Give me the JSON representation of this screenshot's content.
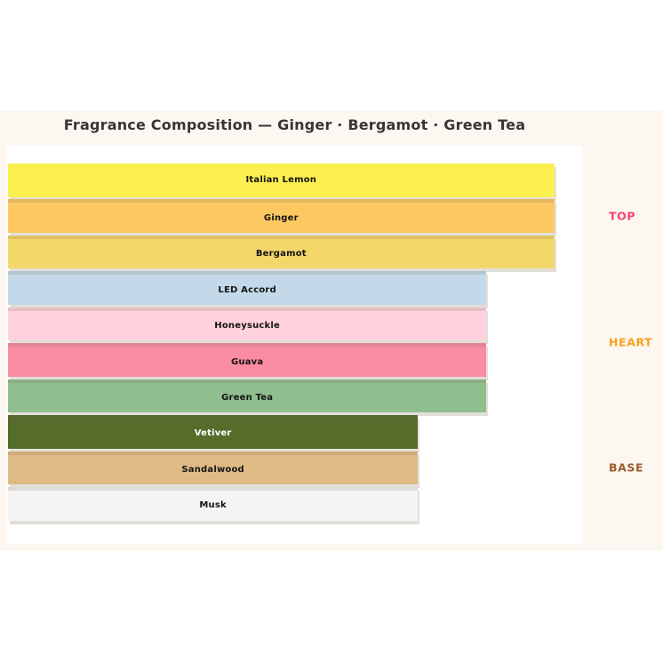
{
  "figure": {
    "background": "#FCF8F1",
    "plot_background": "#FFFFFF"
  },
  "chart_data": {
    "type": "bar",
    "orientation": "horizontal",
    "title": "Fragrance Composition — Ginger · Bergamot · Green Tea",
    "title_color": "#3B3337",
    "xlabel": "",
    "ylabel": "",
    "grid": false,
    "legend": false,
    "axes_note": "no visible axis lines or tick labels; bars labeled inline, groups labeled at right",
    "bar_width_unit": "percent of plot-area width",
    "groups": [
      {
        "label": "TOP",
        "label_color": "#F9406B",
        "notes": [
          {
            "name": "Italian Lemon",
            "width_pct": 95,
            "color": "#FBF04F",
            "text_color": "#141414"
          },
          {
            "name": "Ginger",
            "width_pct": 95,
            "color": "#FDC862",
            "text_color": "#141414"
          },
          {
            "name": "Bergamot",
            "width_pct": 95,
            "color": "#F3D76B",
            "text_color": "#141414"
          }
        ]
      },
      {
        "label": "HEART",
        "label_color": "#F9A01D",
        "notes": [
          {
            "name": "LED Accord",
            "width_pct": 83.2,
            "color": "#C3D9E9",
            "text_color": "#141414"
          },
          {
            "name": "Honeysuckle",
            "width_pct": 83.2,
            "color": "#FFD2DD",
            "text_color": "#141414"
          },
          {
            "name": "Guava",
            "width_pct": 83.2,
            "color": "#FA8CA2",
            "text_color": "#141414"
          },
          {
            "name": "Green Tea",
            "width_pct": 83.2,
            "color": "#8FBE8F",
            "text_color": "#141414"
          }
        ]
      },
      {
        "label": "BASE",
        "label_color": "#9D5A2D",
        "notes": [
          {
            "name": "Vetiver",
            "width_pct": 71.3,
            "color": "#556C2B",
            "text_color": "#FFFFFF"
          },
          {
            "name": "Sandalwood",
            "width_pct": 71.3,
            "color": "#E0BA85",
            "text_color": "#141414"
          },
          {
            "name": "Musk",
            "width_pct": 71.3,
            "color": "#F4F4F4",
            "text_color": "#141414"
          }
        ]
      }
    ]
  }
}
